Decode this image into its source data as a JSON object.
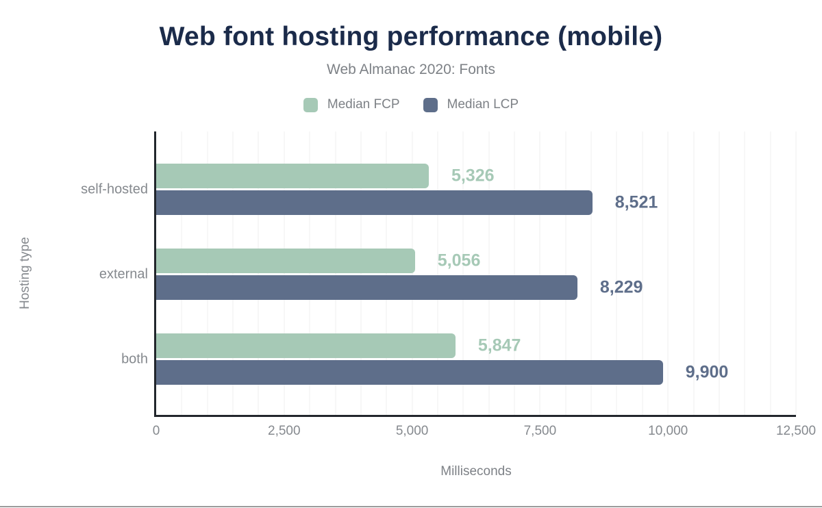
{
  "chart": {
    "title": "Web font hosting performance (mobile)",
    "subtitle": "Web Almanac 2020: Fonts",
    "chart_data": {
      "type": "bar",
      "orientation": "horizontal",
      "title": "Web font hosting performance (mobile)",
      "subtitle": "Web Almanac 2020: Fonts",
      "categories": [
        "self-hosted",
        "external",
        "both"
      ],
      "series": [
        {
          "name": "Median FCP",
          "color": "#a6c9b6",
          "values": [
            5326,
            5056,
            5847
          ],
          "value_labels": [
            "5,326",
            "5,056",
            "5,847"
          ]
        },
        {
          "name": "Median LCP",
          "color": "#5e6e8a",
          "values": [
            8521,
            8229,
            9900
          ],
          "value_labels": [
            "8,521",
            "8,229",
            "9,900"
          ]
        }
      ],
      "xlabel": "Milliseconds",
      "ylabel": "Hosting type",
      "xlim": [
        0,
        12500
      ],
      "xticks": [
        {
          "label": "0",
          "value": 0
        },
        {
          "label": "2,500",
          "value": 2500
        },
        {
          "label": "5,000",
          "value": 5000
        },
        {
          "label": "7,500",
          "value": 7500
        },
        {
          "label": "10,000",
          "value": 10000
        },
        {
          "label": "12,500",
          "value": 12500
        }
      ],
      "minor_grid_step": 500,
      "grid": true,
      "legend_position": "top"
    },
    "colors": {
      "title_text": "#1b2b4a",
      "muted_text": "#7d8186",
      "axis_line": "#22262c",
      "gridline": "#efefef",
      "fcp_green": "#a6c9b6",
      "lcp_blue": "#5e6e8a",
      "bottom_rule": "#9a9a9a"
    }
  }
}
